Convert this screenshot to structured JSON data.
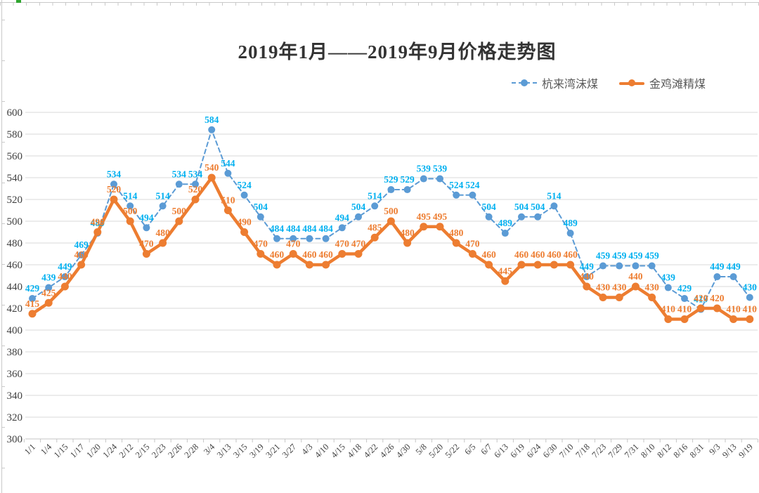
{
  "title": "2019年1月——2019年9月价格走势图",
  "legend": [
    {
      "label": "杭来湾沫煤",
      "color": "#5B9BD5",
      "line_style": "dashed"
    },
    {
      "label": "金鸡滩精煤",
      "color": "#ED7D31",
      "line_style": "solid"
    }
  ],
  "chart_data": {
    "type": "line",
    "title": "2019年1月——2019年9月价格走势图",
    "categories": [
      "1/1",
      "1/4",
      "1/15",
      "1/17",
      "1/20",
      "1/24",
      "2/12",
      "2/15",
      "2/23",
      "2/26",
      "2/28",
      "3/4",
      "3/13",
      "3/15",
      "3/19",
      "3/21",
      "3/27",
      "4/3",
      "4/10",
      "4/15",
      "4/18",
      "4/22",
      "4/26",
      "4/30",
      "5/8",
      "5/20",
      "5/22",
      "6/5",
      "6/7",
      "6/13",
      "6/19",
      "6/24",
      "6/30",
      "7/10",
      "7/18",
      "7/23",
      "7/29",
      "7/31",
      "8/10",
      "8/12",
      "8/16",
      "8/31",
      "9/3",
      "9/13",
      "9/19"
    ],
    "series": [
      {
        "name": "杭来湾沫煤",
        "line_style": "dashed",
        "color": "#5B9BD5",
        "label_color": "#00B0F0",
        "values": [
          429,
          439,
          449,
          469,
          489,
          534,
          514,
          494,
          514,
          534,
          534,
          584,
          544,
          524,
          504,
          484,
          484,
          484,
          484,
          494,
          504,
          514,
          529,
          529,
          539,
          539,
          524,
          524,
          504,
          489,
          504,
          504,
          514,
          489,
          449,
          459,
          459,
          459,
          459,
          439,
          429,
          419,
          449,
          449,
          430
        ]
      },
      {
        "name": "金鸡滩精煤",
        "line_style": "solid",
        "color": "#ED7D31",
        "label_color": "#ED7D31",
        "values": [
          415,
          425,
          440,
          460,
          490,
          520,
          500,
          470,
          480,
          500,
          520,
          540,
          510,
          490,
          470,
          460,
          470,
          460,
          460,
          470,
          470,
          485,
          500,
          480,
          495,
          495,
          480,
          470,
          460,
          445,
          460,
          460,
          460,
          460,
          440,
          430,
          430,
          440,
          430,
          410,
          410,
          420,
          420,
          410,
          410
        ]
      }
    ],
    "y_axis": {
      "min": 300,
      "max": 600,
      "step": 20,
      "ticks": [
        300,
        320,
        340,
        360,
        380,
        400,
        420,
        440,
        460,
        480,
        500,
        520,
        540,
        560,
        580,
        600
      ]
    },
    "xlabel": "",
    "ylabel": "",
    "grid": true,
    "data_labels": true,
    "legend_position": "top-right",
    "grid_color": "#D9D9D9",
    "axis_text_color": "#404040"
  }
}
